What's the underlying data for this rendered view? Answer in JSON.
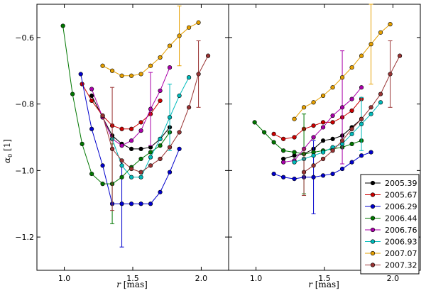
{
  "chart_data": {
    "type": "line",
    "xlabel": "r [mas]",
    "ylabel": "α0 [1]",
    "xlim": [
      0.8,
      2.2
    ],
    "ylim": [
      -1.3,
      -0.5
    ],
    "xticks": [
      "1.0",
      "1.5",
      "2.0"
    ],
    "yticks": [
      "−0.6",
      "−0.8",
      "−1.0",
      "−1.2"
    ],
    "legend_position": "bottom-right (right panel)",
    "panels": [
      {
        "name": "left",
        "series": [
          {
            "name": "2005.39",
            "color": "#000000",
            "x": [
              1.2,
              1.28,
              1.35,
              1.42,
              1.49,
              1.56,
              1.63,
              1.7,
              1.77
            ],
            "y": [
              -0.775,
              -0.84,
              -0.895,
              -0.92,
              -0.935,
              -0.935,
              -0.93,
              -0.905,
              -0.87
            ]
          },
          {
            "name": "2005.67",
            "color": "#cc0000",
            "x": [
              1.13,
              1.2,
              1.28,
              1.35,
              1.42,
              1.49,
              1.56,
              1.63,
              1.7
            ],
            "y": [
              -0.74,
              -0.79,
              -0.835,
              -0.865,
              -0.875,
              -0.875,
              -0.855,
              -0.83,
              -0.79
            ]
          },
          {
            "name": "2006.29",
            "color": "#0000cc",
            "x": [
              1.12,
              1.2,
              1.28,
              1.35,
              1.42,
              1.49,
              1.56,
              1.63,
              1.7,
              1.77,
              1.84
            ],
            "y": [
              -0.71,
              -0.875,
              -0.985,
              -1.1,
              -1.1,
              -1.1,
              -1.1,
              -1.1,
              -1.065,
              -1.005,
              -0.935
            ],
            "errorbars": [
              {
                "x": 1.42,
                "y": -1.1,
                "err": 0.13
              }
            ]
          },
          {
            "name": "2006.44",
            "color": "#007700",
            "x": [
              0.99,
              1.06,
              1.13,
              1.2,
              1.28,
              1.35,
              1.42,
              1.49,
              1.56,
              1.63,
              1.7,
              1.77
            ],
            "y": [
              -0.565,
              -0.77,
              -0.92,
              -1.01,
              -1.04,
              -1.04,
              -1.02,
              -0.99,
              -0.965,
              -0.945,
              -0.925,
              -0.885
            ],
            "errorbars": [
              {
                "x": 1.35,
                "y": -1.04,
                "err": 0.12
              }
            ]
          },
          {
            "name": "2006.76",
            "color": "#aa00aa",
            "x": [
              1.2,
              1.28,
              1.35,
              1.42,
              1.49,
              1.56,
              1.63,
              1.7,
              1.77
            ],
            "y": [
              -0.755,
              -0.84,
              -0.905,
              -0.925,
              -0.91,
              -0.88,
              -0.815,
              -0.76,
              -0.69
            ],
            "errorbars": [
              {
                "x": 1.63,
                "y": -0.815,
                "err": 0.11
              }
            ]
          },
          {
            "name": "2006.93",
            "color": "#00bbbb",
            "x": [
              1.35,
              1.42,
              1.49,
              1.56,
              1.63,
              1.7,
              1.77,
              1.84,
              1.91
            ],
            "y": [
              -0.905,
              -0.985,
              -1.02,
              -1.02,
              -0.96,
              -0.905,
              -0.84,
              -0.775,
              -0.72
            ],
            "errorbars": [
              {
                "x": 1.77,
                "y": -0.84,
                "err": 0.1
              }
            ]
          },
          {
            "name": "2007.07",
            "color": "#e6a000",
            "x": [
              1.28,
              1.35,
              1.42,
              1.49,
              1.56,
              1.63,
              1.7,
              1.77,
              1.84,
              1.91,
              1.98
            ],
            "y": [
              -0.685,
              -0.7,
              -0.715,
              -0.715,
              -0.71,
              -0.685,
              -0.66,
              -0.625,
              -0.595,
              -0.57,
              -0.555
            ],
            "errorbars": [
              {
                "x": 1.84,
                "y": -0.595,
                "err": 0.09
              }
            ]
          },
          {
            "name": "2007.32",
            "color": "#993333",
            "x": [
              1.28,
              1.35,
              1.42,
              1.49,
              1.56,
              1.63,
              1.7,
              1.77,
              1.84,
              1.91,
              1.98,
              2.05
            ],
            "y": [
              -0.835,
              -0.935,
              -0.97,
              -0.995,
              -1.005,
              -0.985,
              -0.965,
              -0.93,
              -0.885,
              -0.81,
              -0.71,
              -0.655
            ],
            "errorbars": [
              {
                "x": 1.35,
                "y": -0.935,
                "err": 0.185
              },
              {
                "x": 1.98,
                "y": -0.71,
                "err": 0.1
              }
            ]
          }
        ]
      },
      {
        "name": "right",
        "series": [
          {
            "name": "2005.39",
            "color": "#000000",
            "x": [
              1.2,
              1.28,
              1.35,
              1.42,
              1.49,
              1.56,
              1.63,
              1.7,
              1.77
            ],
            "y": [
              -0.965,
              -0.955,
              -0.95,
              -0.935,
              -0.91,
              -0.905,
              -0.895,
              -0.87,
              -0.845
            ]
          },
          {
            "name": "2005.67",
            "color": "#cc0000",
            "x": [
              1.13,
              1.2,
              1.28,
              1.35,
              1.42,
              1.49,
              1.56,
              1.63,
              1.7,
              1.77
            ],
            "y": [
              -0.89,
              -0.905,
              -0.9,
              -0.875,
              -0.865,
              -0.855,
              -0.855,
              -0.84,
              -0.82,
              -0.785
            ]
          },
          {
            "name": "2006.29",
            "color": "#0000cc",
            "x": [
              1.13,
              1.2,
              1.28,
              1.35,
              1.42,
              1.49,
              1.56,
              1.63,
              1.7,
              1.77,
              1.84
            ],
            "y": [
              -1.01,
              -1.02,
              -1.025,
              -1.02,
              -1.02,
              -1.015,
              -1.01,
              -0.995,
              -0.975,
              -0.955,
              -0.945
            ],
            "errorbars": [
              {
                "x": 1.42,
                "y": -1.02,
                "err": 0.11
              }
            ]
          },
          {
            "name": "2006.44",
            "color": "#007700",
            "x": [
              0.99,
              1.06,
              1.13,
              1.2,
              1.28,
              1.35,
              1.42,
              1.49,
              1.56,
              1.63,
              1.7,
              1.77
            ],
            "y": [
              -0.855,
              -0.885,
              -0.915,
              -0.94,
              -0.945,
              -0.95,
              -0.945,
              -0.94,
              -0.935,
              -0.93,
              -0.92,
              -0.91
            ],
            "errorbars": [
              {
                "x": 1.35,
                "y": -0.95,
                "err": 0.12
              }
            ]
          },
          {
            "name": "2006.76",
            "color": "#aa00aa",
            "x": [
              1.2,
              1.28,
              1.35,
              1.42,
              1.49,
              1.56,
              1.63,
              1.7,
              1.77
            ],
            "y": [
              -0.975,
              -0.97,
              -0.935,
              -0.9,
              -0.87,
              -0.835,
              -0.81,
              -0.785,
              -0.75
            ],
            "errorbars": [
              {
                "x": 1.63,
                "y": -0.81,
                "err": 0.17
              }
            ]
          },
          {
            "name": "2006.93",
            "color": "#00bbbb",
            "x": [
              1.28,
              1.35,
              1.42,
              1.49,
              1.56,
              1.63,
              1.7,
              1.77,
              1.84,
              1.91
            ],
            "y": [
              -0.975,
              -0.965,
              -0.955,
              -0.945,
              -0.93,
              -0.92,
              -0.89,
              -0.86,
              -0.83,
              -0.795
            ],
            "errorbars": [
              {
                "x": 1.77,
                "y": -0.86,
                "err": 0.08
              }
            ]
          },
          {
            "name": "2007.07",
            "color": "#e6a000",
            "x": [
              1.28,
              1.35,
              1.42,
              1.49,
              1.56,
              1.63,
              1.7,
              1.77,
              1.84,
              1.91,
              1.98
            ],
            "y": [
              -0.845,
              -0.81,
              -0.795,
              -0.775,
              -0.75,
              -0.72,
              -0.69,
              -0.655,
              -0.62,
              -0.585,
              -0.56
            ],
            "errorbars": [
              {
                "x": 1.84,
                "y": -0.62,
                "err": 0.12
              }
            ]
          },
          {
            "name": "2007.32",
            "color": "#993333",
            "x": [
              1.35,
              1.42,
              1.49,
              1.56,
              1.63,
              1.7,
              1.77,
              1.84,
              1.91,
              1.98,
              2.05
            ],
            "y": [
              -1.005,
              -0.985,
              -0.965,
              -0.94,
              -0.91,
              -0.875,
              -0.845,
              -0.81,
              -0.77,
              -0.71,
              -0.655
            ],
            "errorbars": [
              {
                "x": 1.35,
                "y": -1.005,
                "err": 0.07
              },
              {
                "x": 1.98,
                "y": -0.71,
                "err": 0.1
              }
            ]
          }
        ]
      }
    ]
  }
}
